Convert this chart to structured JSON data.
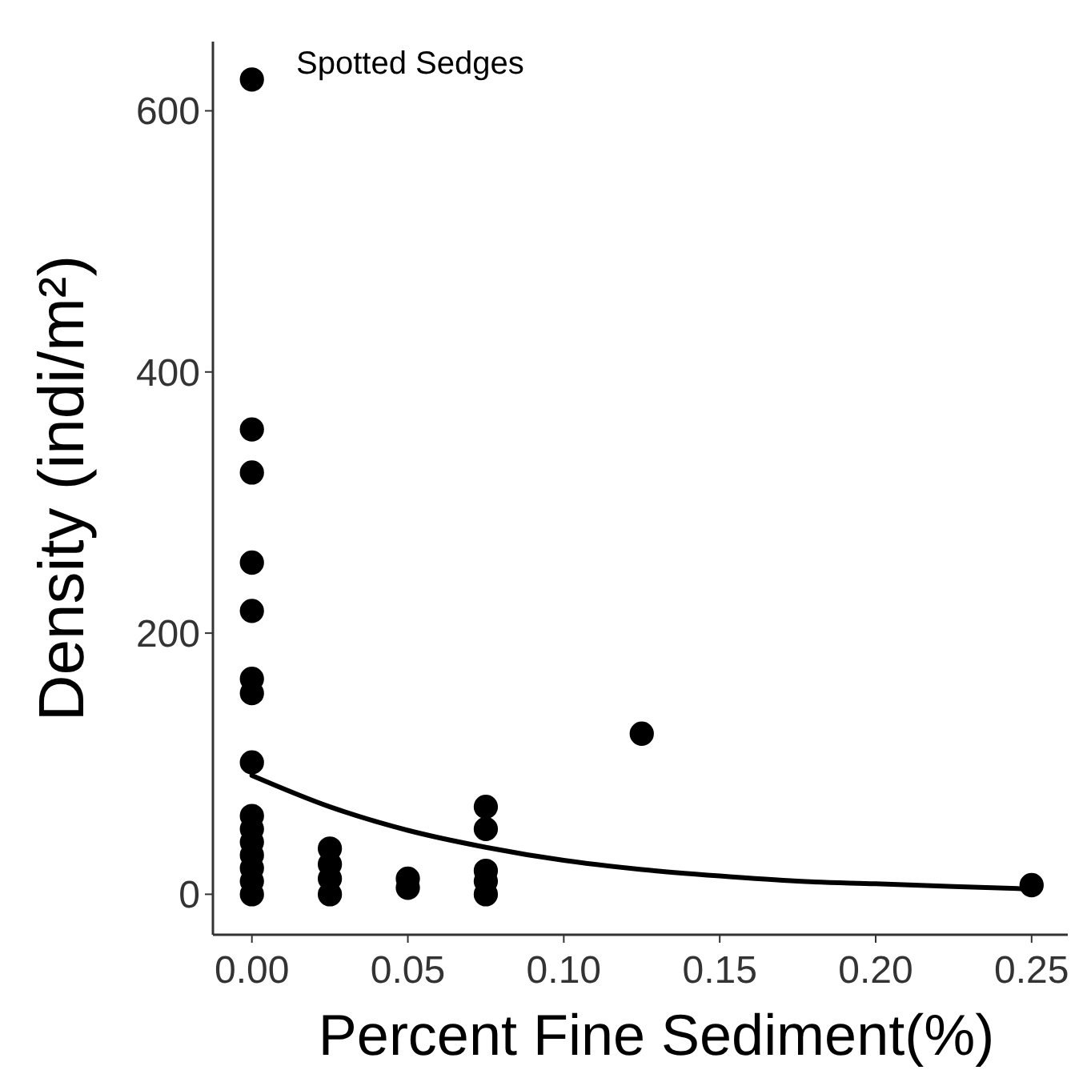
{
  "chart_data": {
    "type": "scatter",
    "title": "Spotted Sedges",
    "xlabel": "Percent Fine Sediment(%)",
    "ylabel": "Density (indi/m²)",
    "xlim": [
      -0.0125,
      0.2616
    ],
    "ylim": [
      -31,
      653
    ],
    "xticks": [
      {
        "value": 0,
        "label": "0.00"
      },
      {
        "value": 0.05,
        "label": "0.05"
      },
      {
        "value": 0.1,
        "label": "0.10"
      },
      {
        "value": 0.15,
        "label": "0.15"
      },
      {
        "value": 0.2,
        "label": "0.20"
      },
      {
        "value": 0.25,
        "label": "0.25"
      }
    ],
    "yticks": [
      0,
      200,
      400,
      600
    ],
    "grid": false,
    "marker": "circle",
    "series": [
      {
        "color": "#000000",
        "x": [
          0,
          0,
          0,
          0,
          0,
          0,
          0,
          0,
          0,
          0,
          0,
          0,
          0,
          0,
          0,
          0.025,
          0.025,
          0.025,
          0.025,
          0.05,
          0.05,
          0.075,
          0.075,
          0.075,
          0.075,
          0.075,
          0.125,
          0.25
        ],
        "values": [
          624,
          356,
          323,
          254,
          217,
          165,
          154,
          101,
          60,
          50,
          40,
          30,
          20,
          10,
          0,
          35,
          23,
          12,
          0,
          12,
          5,
          67,
          50,
          18,
          10,
          0,
          123,
          7
        ]
      },
      {
        "type": "line",
        "color": "#000000",
        "marker": "none",
        "line_style": "solid",
        "x": [
          0,
          0.025,
          0.05,
          0.075,
          0.1,
          0.125,
          0.15,
          0.175,
          0.2,
          0.225,
          0.25
        ],
        "values": [
          91,
          67,
          49,
          36,
          26,
          19,
          14,
          10,
          8,
          6,
          4
        ]
      }
    ]
  }
}
